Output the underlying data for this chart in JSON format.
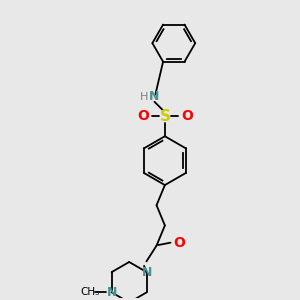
{
  "background_color": "#e8e8e8",
  "bond_color": "#000000",
  "N_color": "#4a9090",
  "O_color": "#ff0000",
  "S_color": "#cccc00",
  "C_color": "#000000",
  "H_color": "#808080",
  "figsize": [
    3.0,
    3.0
  ],
  "dpi": 100,
  "xlim": [
    0,
    10
  ],
  "ylim": [
    0,
    10
  ]
}
